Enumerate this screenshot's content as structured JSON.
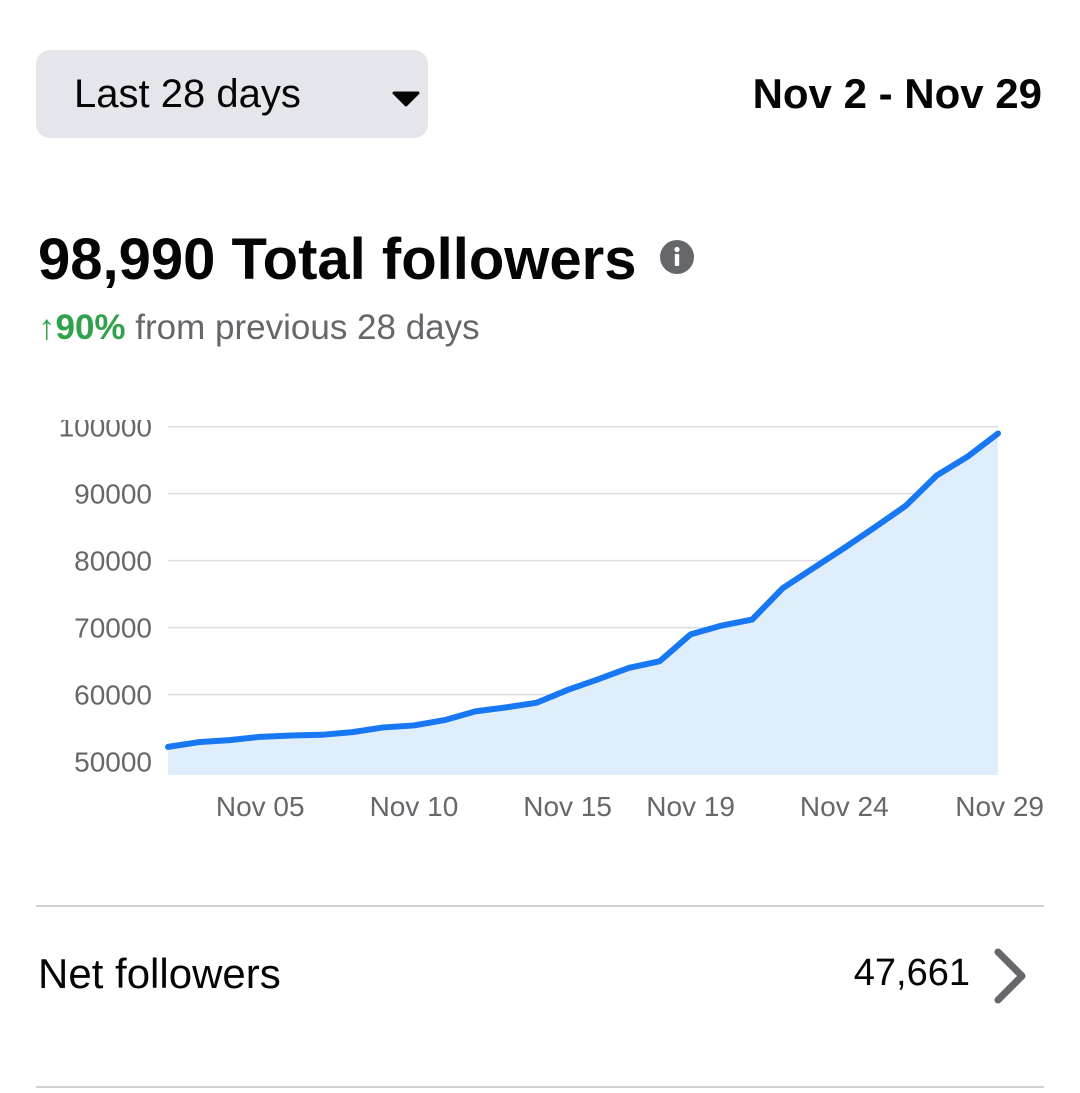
{
  "header": {
    "range_label": "Last 28 days",
    "date_range": "Nov 2 - Nov 29"
  },
  "summary": {
    "total_value": "98,990",
    "total_label": "Total followers",
    "change_arrow": "↑",
    "change_pct": "90%",
    "change_text": "from previous 28 days"
  },
  "chart_data": {
    "type": "area",
    "x": [
      "Nov 02",
      "Nov 03",
      "Nov 04",
      "Nov 05",
      "Nov 06",
      "Nov 07",
      "Nov 08",
      "Nov 09",
      "Nov 10",
      "Nov 11",
      "Nov 12",
      "Nov 13",
      "Nov 14",
      "Nov 15",
      "Nov 16",
      "Nov 17",
      "Nov 18",
      "Nov 19",
      "Nov 20",
      "Nov 21",
      "Nov 22",
      "Nov 23",
      "Nov 24",
      "Nov 25",
      "Nov 26",
      "Nov 27",
      "Nov 28",
      "Nov 29"
    ],
    "series": [
      {
        "values": [
          52200,
          52900,
          53200,
          53700,
          53900,
          54000,
          54400,
          55100,
          55400,
          56200,
          57500,
          58100,
          58800,
          60700,
          62300,
          64000,
          65000,
          69000,
          70300,
          71200,
          75900,
          78900,
          81900,
          85000,
          88200,
          92700,
          95500,
          98990
        ],
        "color": "#1877f2"
      }
    ],
    "xticks": [
      "Nov 05",
      "Nov 10",
      "Nov 15",
      "Nov 19",
      "Nov 24",
      "Nov 29"
    ],
    "yticks": [
      "50000",
      "60000",
      "70000",
      "80000",
      "90000",
      "100000"
    ],
    "ylim": [
      48000,
      101000
    ],
    "fill_color": "#e0eefc",
    "grid": true
  },
  "net": {
    "label": "Net followers",
    "value": "47,661"
  }
}
